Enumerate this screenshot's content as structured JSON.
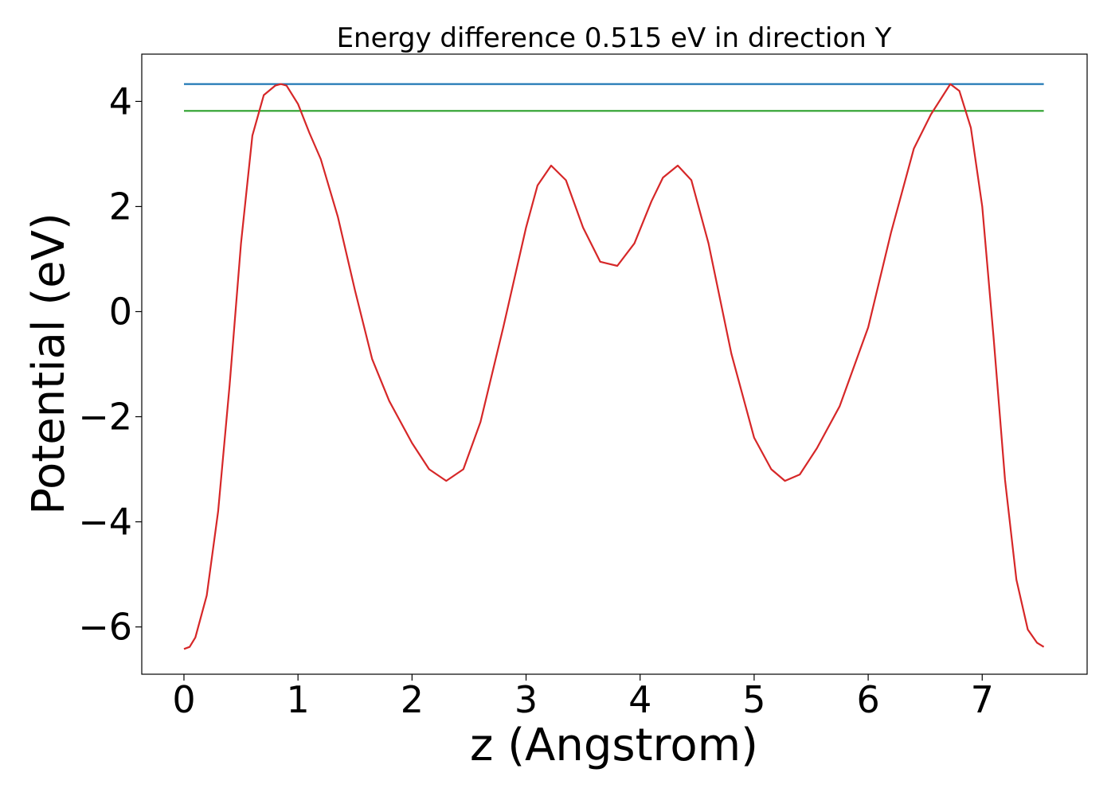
{
  "chart_data": {
    "type": "line",
    "title": "Energy difference 0.515 eV in direction Y",
    "xlabel": "z (Angstrom)",
    "ylabel": "Potential (eV)",
    "xlim": [
      -0.37,
      7.92
    ],
    "ylim": [
      -6.9,
      4.9
    ],
    "x_ticks": [
      0,
      1,
      2,
      3,
      4,
      5,
      6,
      7
    ],
    "x_tick_labels": [
      "0",
      "1",
      "2",
      "3",
      "4",
      "5",
      "6",
      "7"
    ],
    "y_ticks": [
      -6,
      -4,
      -2,
      0,
      2,
      4
    ],
    "y_tick_labels": [
      "−6",
      "−4",
      "−2",
      "0",
      "2",
      "4"
    ],
    "grid": false,
    "series": [
      {
        "color": "#1f77b4",
        "x": [
          0,
          7.54
        ],
        "y": [
          4.33,
          4.33
        ]
      },
      {
        "color": "#2ca02c",
        "x": [
          0,
          7.54
        ],
        "y": [
          3.82,
          3.82
        ]
      },
      {
        "color": "#d62728",
        "x": [
          0.0,
          0.05,
          0.1,
          0.2,
          0.3,
          0.4,
          0.5,
          0.6,
          0.7,
          0.8,
          0.85,
          0.9,
          1.0,
          1.1,
          1.2,
          1.35,
          1.5,
          1.65,
          1.8,
          2.0,
          2.15,
          2.3,
          2.45,
          2.6,
          2.8,
          3.0,
          3.1,
          3.22,
          3.35,
          3.5,
          3.65,
          3.8,
          3.95,
          4.1,
          4.2,
          4.33,
          4.45,
          4.6,
          4.8,
          5.0,
          5.15,
          5.27,
          5.4,
          5.55,
          5.75,
          6.0,
          6.2,
          6.4,
          6.55,
          6.72,
          6.8,
          6.9,
          7.0,
          7.1,
          7.2,
          7.3,
          7.4,
          7.48,
          7.54
        ],
        "y": [
          -6.42,
          -6.38,
          -6.2,
          -5.4,
          -3.8,
          -1.4,
          1.3,
          3.35,
          4.12,
          4.3,
          4.33,
          4.3,
          3.95,
          3.4,
          2.9,
          1.8,
          0.4,
          -0.9,
          -1.7,
          -2.5,
          -3.0,
          -3.22,
          -3.0,
          -2.1,
          -0.3,
          1.6,
          2.4,
          2.78,
          2.5,
          1.6,
          0.95,
          0.87,
          1.3,
          2.1,
          2.55,
          2.78,
          2.5,
          1.3,
          -0.8,
          -2.4,
          -3.0,
          -3.22,
          -3.1,
          -2.6,
          -1.8,
          -0.3,
          1.5,
          3.1,
          3.75,
          4.33,
          4.2,
          3.5,
          2.0,
          -0.5,
          -3.2,
          -5.1,
          -6.05,
          -6.3,
          -6.38
        ]
      }
    ]
  }
}
